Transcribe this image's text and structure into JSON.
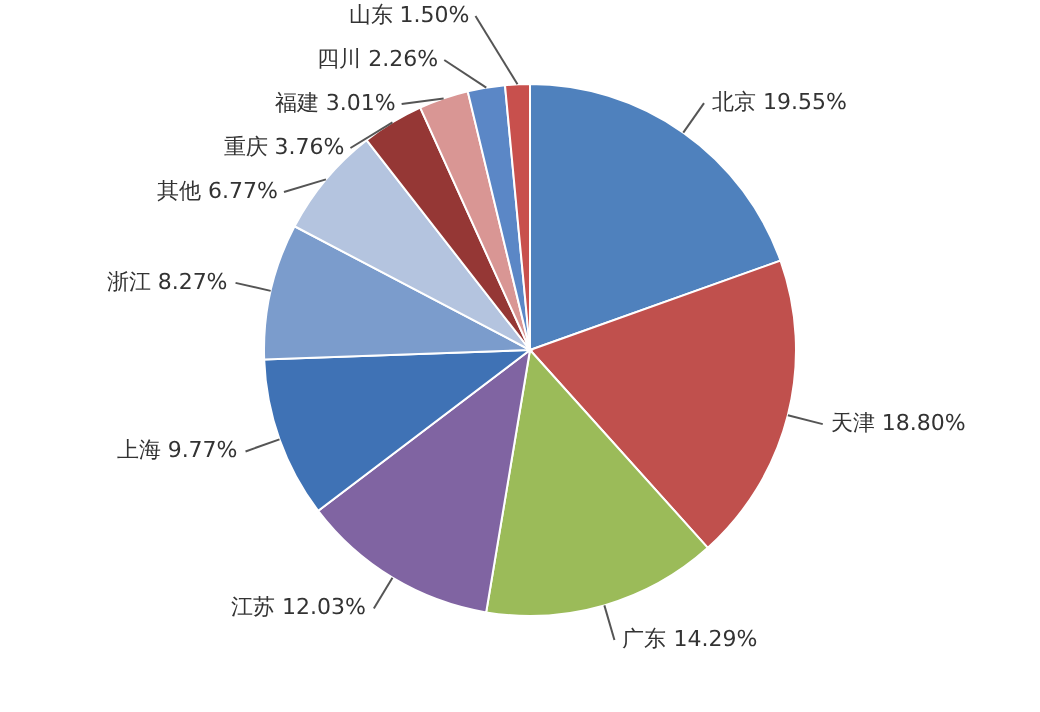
{
  "chart_data": {
    "type": "pie",
    "categories": [
      "北京",
      "天津",
      "广东",
      "江苏",
      "上海",
      "浙江",
      "其他",
      "重庆",
      "福建",
      "四川",
      "山东"
    ],
    "values": [
      19.55,
      18.8,
      14.29,
      12.03,
      9.77,
      8.27,
      6.77,
      3.76,
      3.01,
      2.26,
      1.5
    ],
    "value_labels": [
      "19.55%",
      "18.80%",
      "14.29%",
      "12.03%",
      "9.77%",
      "8.27%",
      "6.77%",
      "3.76%",
      "3.01%",
      "2.26%",
      "1.50%"
    ],
    "colors": [
      "#4f81bd",
      "#c0504d",
      "#9bbb59",
      "#8064a2",
      "#3f72b5",
      "#7b9ccc",
      "#b4c4df",
      "#953735",
      "#d99694",
      "#5b87c6",
      "#c8504d"
    ]
  }
}
